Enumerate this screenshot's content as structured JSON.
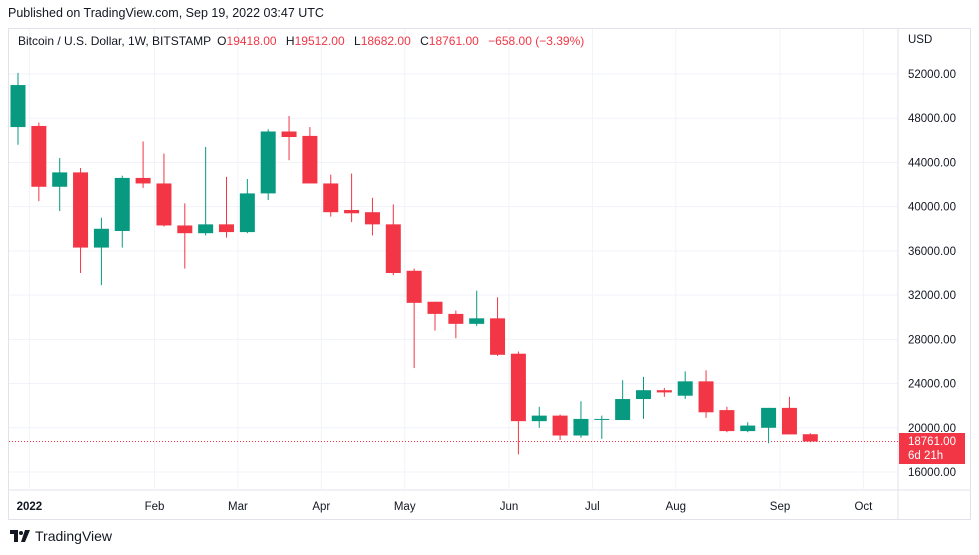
{
  "header": {
    "published": "Published on TradingView.com, Sep 19, 2022 03:47 UTC"
  },
  "legend": {
    "symbol": "Bitcoin / U.S. Dollar, 1W, BITSTAMP",
    "open_label": "O",
    "open_value": "19418.00",
    "high_label": "H",
    "high_value": "19512.00",
    "low_label": "L",
    "low_value": "18682.00",
    "close_label": "C",
    "close_value": "18761.00",
    "change": "−658.00 (−3.39%)"
  },
  "axis": {
    "currency": "USD"
  },
  "price_tag": {
    "price": "18761.00",
    "countdown": "6d 21h"
  },
  "footer": {
    "brand": "TradingView"
  },
  "colors": {
    "up": "#089981",
    "down": "#f23645",
    "grid": "#f0f3fa",
    "text": "#131722"
  },
  "chart_data": {
    "type": "candlestick",
    "title": "Bitcoin / U.S. Dollar, 1W, BITSTAMP",
    "ylabel": "USD",
    "ylim": [
      14800,
      54800
    ],
    "y_ticks": [
      {
        "value": 16000,
        "label": "16000.00"
      },
      {
        "value": 20000,
        "label": "20000.00"
      },
      {
        "value": 24000,
        "label": "24000.00"
      },
      {
        "value": 28000,
        "label": "28000.00"
      },
      {
        "value": 32000,
        "label": "32000.00"
      },
      {
        "value": 36000,
        "label": "36000.00"
      },
      {
        "value": 40000,
        "label": "40000.00"
      },
      {
        "value": 44000,
        "label": "44000.00"
      },
      {
        "value": 48000,
        "label": "48000.00"
      },
      {
        "value": 52000,
        "label": "52000.00"
      }
    ],
    "x_ticks": [
      {
        "index": 0.5,
        "label": "2022",
        "bold": true
      },
      {
        "index": 6.5,
        "label": "Feb"
      },
      {
        "index": 10.5,
        "label": "Mar"
      },
      {
        "index": 14.5,
        "label": "Apr"
      },
      {
        "index": 18.5,
        "label": "May"
      },
      {
        "index": 23.5,
        "label": "Jun"
      },
      {
        "index": 27.5,
        "label": "Jul"
      },
      {
        "index": 31.5,
        "label": "Aug"
      },
      {
        "index": 36.5,
        "label": "Sep"
      },
      {
        "index": 40.5,
        "label": "Oct"
      }
    ],
    "last_price": 18761,
    "candles": [
      {
        "o": 47200,
        "h": 52100,
        "l": 45600,
        "c": 51000
      },
      {
        "o": 47300,
        "h": 47600,
        "l": 40500,
        "c": 41800
      },
      {
        "o": 41800,
        "h": 44400,
        "l": 39600,
        "c": 43100
      },
      {
        "o": 43100,
        "h": 43500,
        "l": 34000,
        "c": 36300
      },
      {
        "o": 36300,
        "h": 39000,
        "l": 32900,
        "c": 38000
      },
      {
        "o": 37800,
        "h": 42800,
        "l": 36300,
        "c": 42600
      },
      {
        "o": 42600,
        "h": 45900,
        "l": 41700,
        "c": 42100
      },
      {
        "o": 42100,
        "h": 44800,
        "l": 38200,
        "c": 38300
      },
      {
        "o": 38300,
        "h": 40300,
        "l": 34400,
        "c": 37600
      },
      {
        "o": 37600,
        "h": 45400,
        "l": 37400,
        "c": 38400
      },
      {
        "o": 38400,
        "h": 42700,
        "l": 37200,
        "c": 37700
      },
      {
        "o": 37700,
        "h": 42500,
        "l": 37600,
        "c": 41200
      },
      {
        "o": 41200,
        "h": 47000,
        "l": 40600,
        "c": 46800
      },
      {
        "o": 46800,
        "h": 48200,
        "l": 44200,
        "c": 46300
      },
      {
        "o": 46400,
        "h": 47200,
        "l": 42200,
        "c": 42100
      },
      {
        "o": 42100,
        "h": 42900,
        "l": 39100,
        "c": 39500
      },
      {
        "o": 39700,
        "h": 43000,
        "l": 38600,
        "c": 39400
      },
      {
        "o": 39500,
        "h": 40800,
        "l": 37400,
        "c": 38400
      },
      {
        "o": 38400,
        "h": 40200,
        "l": 33800,
        "c": 34000
      },
      {
        "o": 34200,
        "h": 34400,
        "l": 25400,
        "c": 31300
      },
      {
        "o": 31400,
        "h": 31400,
        "l": 28800,
        "c": 30300
      },
      {
        "o": 30300,
        "h": 30600,
        "l": 28100,
        "c": 29400
      },
      {
        "o": 29400,
        "h": 32400,
        "l": 29200,
        "c": 29900
      },
      {
        "o": 29900,
        "h": 31800,
        "l": 26500,
        "c": 26600
      },
      {
        "o": 26700,
        "h": 26900,
        "l": 17600,
        "c": 20600
      },
      {
        "o": 20600,
        "h": 21900,
        "l": 20000,
        "c": 21100
      },
      {
        "o": 21100,
        "h": 21200,
        "l": 18900,
        "c": 19300
      },
      {
        "o": 19300,
        "h": 22400,
        "l": 19100,
        "c": 20800
      },
      {
        "o": 20800,
        "h": 21100,
        "l": 19000,
        "c": 20800
      },
      {
        "o": 20700,
        "h": 24300,
        "l": 20700,
        "c": 22600
      },
      {
        "o": 22600,
        "h": 24600,
        "l": 20800,
        "c": 23400
      },
      {
        "o": 23400,
        "h": 23600,
        "l": 22800,
        "c": 23200
      },
      {
        "o": 22900,
        "h": 25100,
        "l": 22600,
        "c": 24200
      },
      {
        "o": 24200,
        "h": 25200,
        "l": 20900,
        "c": 21400
      },
      {
        "o": 21600,
        "h": 21900,
        "l": 19600,
        "c": 19700
      },
      {
        "o": 19700,
        "h": 20500,
        "l": 19600,
        "c": 20200
      },
      {
        "o": 20000,
        "h": 21800,
        "l": 18600,
        "c": 21800
      },
      {
        "o": 21800,
        "h": 22800,
        "l": 19400,
        "c": 19400
      },
      {
        "o": 19418,
        "h": 19512,
        "l": 18682,
        "c": 18761
      }
    ]
  }
}
